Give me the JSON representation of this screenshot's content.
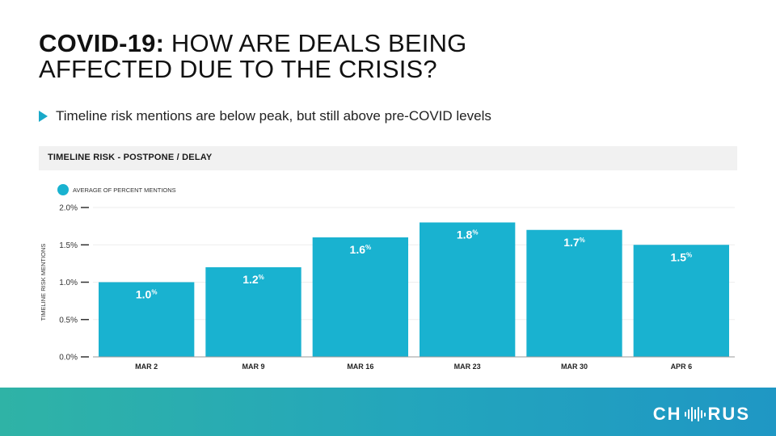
{
  "slide": {
    "title_bold": "COVID-19:",
    "title_rest": " HOW ARE DEALS BEING AFFECTED DUE TO THE CRISIS?",
    "bullet": "Timeline risk mentions are below peak, but still above pre-COVID levels",
    "chart_header": "TIMELINE RISK - POSTPONE / DELAY",
    "logo_left": "CH",
    "logo_right": "RUS"
  },
  "colors": {
    "bar": "#19b2d0",
    "accent": "#19a9c9",
    "footer_start": "#2fb3a6",
    "footer_end": "#1f97c4"
  },
  "chart_data": {
    "type": "bar",
    "title": "TIMELINE RISK - POSTPONE / DELAY",
    "categories": [
      "MAR 2",
      "MAR 9",
      "MAR 16",
      "MAR 23",
      "MAR 30",
      "APR 6"
    ],
    "series": [
      {
        "name": "AVERAGE OF PERCENT MENTIONS",
        "values": [
          1.0,
          1.2,
          1.6,
          1.8,
          1.7,
          1.5
        ]
      }
    ],
    "data_labels": [
      "1.0",
      "1.2",
      "1.6",
      "1.8",
      "1.7",
      "1.5"
    ],
    "data_label_suffix": "%",
    "ylabel": "TIMELINE RISK MENTIONS",
    "xlabel": "",
    "ylim": [
      0,
      2.0
    ],
    "yticks": [
      0,
      0.5,
      1.0,
      1.5,
      2.0
    ],
    "ytick_labels": [
      "0.0%",
      "0.5%",
      "1.0%",
      "1.5%",
      "2.0%"
    ],
    "grid": true,
    "legend_position": "top-left"
  }
}
